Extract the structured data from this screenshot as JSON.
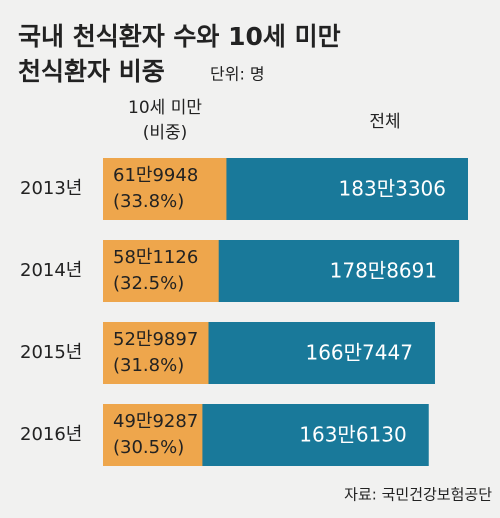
{
  "chart_data": {
    "type": "bar",
    "title": [
      "국내 천식환자 수와 10세 미만",
      "천식환자 비중"
    ],
    "unit_note": "단위: 명",
    "share_header": "(비중)",
    "categories": [
      "2013년",
      "2014년",
      "2015년",
      "2016년"
    ],
    "series": [
      {
        "name": "전체",
        "color": "#19799a",
        "values": [
          1833306,
          1788691,
          1667447,
          1636130
        ],
        "value_labels": [
          "183만3306",
          "178만8691",
          "166만7447",
          "163만6130"
        ]
      },
      {
        "name": "10세 미만",
        "color": "#eea64c",
        "values": [
          619948,
          581126,
          529897,
          499287
        ],
        "value_labels": [
          "61만9948",
          "58만1126",
          "52만9897",
          "49만9287"
        ],
        "shares": [
          33.8,
          32.5,
          31.8,
          30.5
        ],
        "share_labels": [
          "(33.8%)",
          "(32.5%)",
          "(31.8%)",
          "(30.5%)"
        ]
      }
    ],
    "source": "자료: 국민건강보험공단"
  }
}
